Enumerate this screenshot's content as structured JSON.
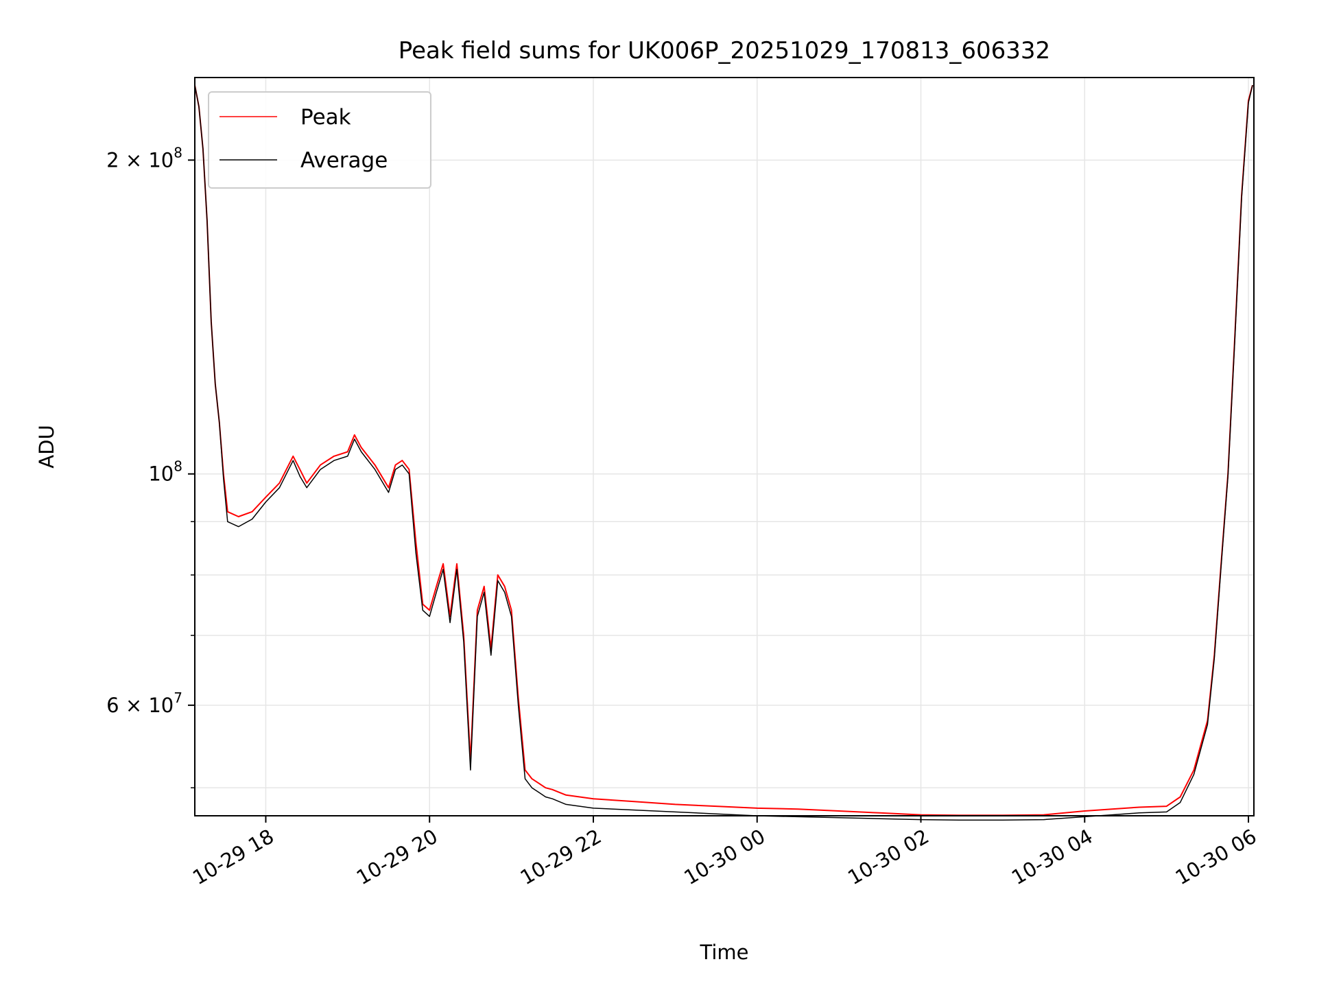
{
  "chart_data": {
    "type": "line",
    "title": "Peak field sums for UK006P_20251029_170813_606332",
    "xlabel": "Time",
    "ylabel": "ADU",
    "yscale": "log",
    "xlim": [
      "2025-10-29 17:08",
      "2025-10-30 06:04"
    ],
    "ylim": [
      47000000,
      240000000
    ],
    "grid": true,
    "legend": "top-left",
    "x_ticks": [
      {
        "value": "2025-10-29 18:00",
        "label": "10-29 18"
      },
      {
        "value": "2025-10-29 20:00",
        "label": "10-29 20"
      },
      {
        "value": "2025-10-29 22:00",
        "label": "10-29 22"
      },
      {
        "value": "2025-10-30 00:00",
        "label": "10-30 00"
      },
      {
        "value": "2025-10-30 02:00",
        "label": "10-30 02"
      },
      {
        "value": "2025-10-30 04:00",
        "label": "10-30 04"
      },
      {
        "value": "2025-10-30 06:00",
        "label": "10-30 06"
      }
    ],
    "y_ticks_major": [
      {
        "value": 60000000,
        "mantissa": "6",
        "exponent": "7"
      },
      {
        "value": 100000000,
        "mantissa": "",
        "exponent": "8"
      },
      {
        "value": 200000000,
        "mantissa": "2",
        "exponent": "8"
      }
    ],
    "y_ticks_minor": [
      50000000,
      70000000,
      80000000,
      90000000
    ],
    "times": [
      "2025-10-29 17:08",
      "2025-10-29 17:11",
      "2025-10-29 17:14",
      "2025-10-29 17:17",
      "2025-10-29 17:20",
      "2025-10-29 17:23",
      "2025-10-29 17:26",
      "2025-10-29 17:29",
      "2025-10-29 17:32",
      "2025-10-29 17:40",
      "2025-10-29 17:50",
      "2025-10-29 18:00",
      "2025-10-29 18:10",
      "2025-10-29 18:20",
      "2025-10-29 18:25",
      "2025-10-29 18:30",
      "2025-10-29 18:40",
      "2025-10-29 18:50",
      "2025-10-29 19:00",
      "2025-10-29 19:05",
      "2025-10-29 19:10",
      "2025-10-29 19:20",
      "2025-10-29 19:30",
      "2025-10-29 19:35",
      "2025-10-29 19:40",
      "2025-10-29 19:45",
      "2025-10-29 19:50",
      "2025-10-29 19:55",
      "2025-10-29 20:00",
      "2025-10-29 20:05",
      "2025-10-29 20:10",
      "2025-10-29 20:15",
      "2025-10-29 20:20",
      "2025-10-29 20:25",
      "2025-10-29 20:30",
      "2025-10-29 20:35",
      "2025-10-29 20:40",
      "2025-10-29 20:45",
      "2025-10-29 20:50",
      "2025-10-29 20:55",
      "2025-10-29 21:00",
      "2025-10-29 21:05",
      "2025-10-29 21:10",
      "2025-10-29 21:15",
      "2025-10-29 21:20",
      "2025-10-29 21:25",
      "2025-10-29 21:30",
      "2025-10-29 21:35",
      "2025-10-29 21:40",
      "2025-10-29 21:50",
      "2025-10-29 22:00",
      "2025-10-29 22:30",
      "2025-10-29 23:00",
      "2025-10-29 23:30",
      "2025-10-30 00:00",
      "2025-10-30 00:30",
      "2025-10-30 01:00",
      "2025-10-30 01:30",
      "2025-10-30 02:00",
      "2025-10-30 02:30",
      "2025-10-30 03:00",
      "2025-10-30 03:30",
      "2025-10-30 04:00",
      "2025-10-30 04:20",
      "2025-10-30 04:40",
      "2025-10-30 05:00",
      "2025-10-30 05:10",
      "2025-10-30 05:20",
      "2025-10-30 05:30",
      "2025-10-30 05:35",
      "2025-10-30 05:40",
      "2025-10-30 05:45",
      "2025-10-30 05:50",
      "2025-10-30 05:55",
      "2025-10-30 06:00",
      "2025-10-30 06:03"
    ],
    "series": [
      {
        "name": "Peak",
        "color": "#ff0000",
        "values": [
          236000000,
          225000000,
          205000000,
          175000000,
          140000000,
          122000000,
          112000000,
          100000000,
          92000000,
          91000000,
          92000000,
          95000000,
          98000000,
          104000000,
          101000000,
          98000000,
          102000000,
          104000000,
          105000000,
          109000000,
          106000000,
          102000000,
          97000000,
          102000000,
          103000000,
          101000000,
          86000000,
          75000000,
          74000000,
          78000000,
          82000000,
          73000000,
          82000000,
          70000000,
          53000000,
          74000000,
          78000000,
          68000000,
          80000000,
          78000000,
          74000000,
          61000000,
          52000000,
          51000000,
          50500000,
          50000000,
          49800000,
          49500000,
          49200000,
          49000000,
          48800000,
          48500000,
          48200000,
          48000000,
          47800000,
          47700000,
          47500000,
          47300000,
          47100000,
          47050000,
          47050000,
          47100000,
          47500000,
          47700000,
          47900000,
          48000000,
          49000000,
          52000000,
          58000000,
          67000000,
          82000000,
          100000000,
          135000000,
          185000000,
          228000000,
          236000000
        ]
      },
      {
        "name": "Average",
        "color": "#000000",
        "values": [
          236000000,
          225000000,
          205000000,
          175000000,
          140000000,
          122000000,
          112000000,
          99000000,
          90000000,
          89000000,
          90500000,
          94000000,
          97000000,
          103000000,
          99500000,
          97000000,
          101000000,
          103000000,
          104000000,
          108000000,
          105000000,
          101000000,
          96000000,
          101000000,
          102000000,
          100000000,
          84000000,
          74000000,
          73000000,
          77000000,
          81000000,
          72000000,
          81000000,
          69000000,
          52000000,
          73000000,
          77000000,
          67000000,
          79000000,
          77000000,
          73000000,
          60000000,
          51000000,
          50000000,
          49500000,
          49000000,
          48800000,
          48500000,
          48200000,
          48000000,
          47800000,
          47600000,
          47400000,
          47200000,
          47000000,
          46900000,
          46800000,
          46700000,
          46600000,
          46550000,
          46550000,
          46600000,
          46900000,
          47100000,
          47300000,
          47400000,
          48400000,
          51500000,
          57500000,
          66500000,
          81500000,
          99500000,
          134000000,
          184000000,
          227000000,
          236000000
        ]
      }
    ]
  }
}
